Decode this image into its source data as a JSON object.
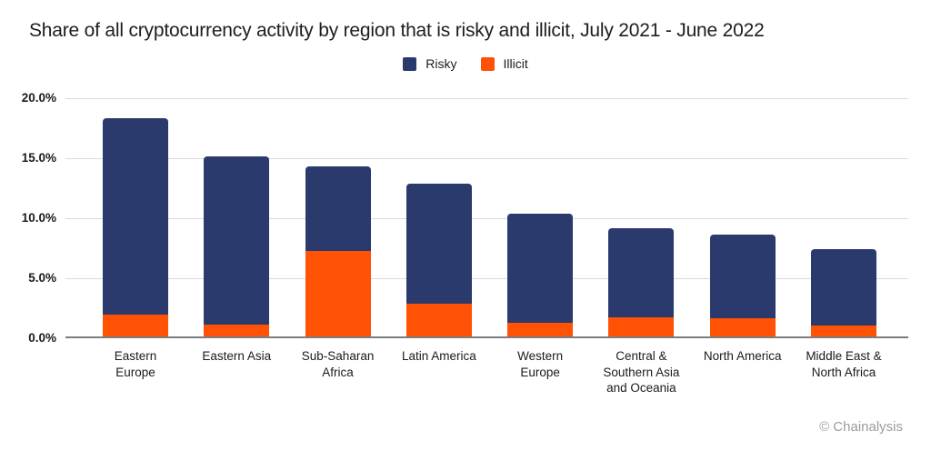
{
  "title": "Share of all cryptocurrency activity by region that is risky and illicit, July 2021 - June 2022",
  "legend": [
    {
      "label": "Risky",
      "color": "#2b3a6d"
    },
    {
      "label": "Illicit",
      "color": "#ff5204"
    }
  ],
  "footer": {
    "credit": "© Chainalysis"
  },
  "colors": {
    "risky": "#2b3a6d",
    "illicit": "#ff5204",
    "grid": "#d9d9d9",
    "axis": "#7d7d7d",
    "text": "#1b1b1f",
    "footer_text": "#9c9c9c"
  },
  "chart_data": {
    "type": "bar",
    "stacked": true,
    "unit": "%",
    "title": "Share of all cryptocurrency activity by region that is risky and illicit, July 2021 - June 2022",
    "categories": [
      "Eastern Europe",
      "Eastern Asia",
      "Sub-Saharan Africa",
      "Latin America",
      "Western Europe",
      "Central & Southern Asia and Oceania",
      "North America",
      "Middle East & North Africa"
    ],
    "category_lines": [
      [
        "Eastern",
        "Europe"
      ],
      [
        "Eastern Asia"
      ],
      [
        "Sub-Saharan",
        "Africa"
      ],
      [
        "Latin America"
      ],
      [
        "Western",
        "Europe"
      ],
      [
        "Central &",
        "Southern Asia",
        "and Oceania"
      ],
      [
        "North America"
      ],
      [
        "Middle East &",
        "North Africa"
      ]
    ],
    "series": [
      {
        "name": "Illicit",
        "color": "#ff5204",
        "values": [
          1.8,
          1.0,
          7.1,
          2.7,
          1.1,
          1.6,
          1.5,
          0.9
        ]
      },
      {
        "name": "Risky",
        "color": "#2b3a6d",
        "values": [
          16.4,
          14.0,
          7.1,
          10.0,
          9.1,
          7.4,
          7.0,
          6.4
        ]
      }
    ],
    "totals": [
      18.2,
      15.0,
      14.2,
      12.7,
      10.2,
      9.0,
      8.5,
      7.3
    ],
    "xlabel": "",
    "ylabel": "",
    "ylim": [
      0,
      20
    ],
    "ytick_values": [
      0,
      5,
      10,
      15,
      20
    ],
    "ytick_labels": [
      "0.0%",
      "5.0%",
      "10.0%",
      "15.0%",
      "20.0%"
    ],
    "grid": true,
    "legend_position": "top-center"
  }
}
